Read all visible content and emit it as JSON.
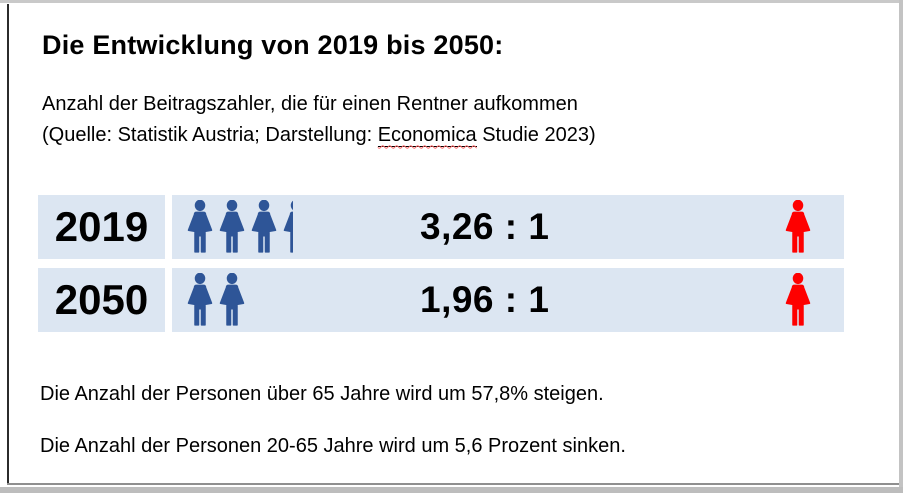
{
  "title": "Die Entwicklung von 2019 bis 2050:",
  "subtitle": {
    "line1": "Anzahl der Beitragszahler, die für einen Rentner aufkommen",
    "line2_prefix": "(Quelle: Statistik Austria; Darstellung: ",
    "line2_word": "Economica",
    "line2_suffix": " Studie 2023)"
  },
  "rows": [
    {
      "year": "2019",
      "ratio": "3,26 : 1",
      "contributors_full_icons": 3,
      "contributors_partial_icon": true,
      "pensioner_icons": 1
    },
    {
      "year": "2050",
      "ratio": "1,96 : 1",
      "contributors_full_icons": 2,
      "contributors_partial_icon": false,
      "pensioner_icons": 1
    }
  ],
  "footnotes": [
    "Die Anzahl der Personen über 65 Jahre wird um 57,8% steigen.",
    "Die Anzahl der Personen 20-65 Jahre wird um 5,6 Prozent sinken."
  ],
  "colors": {
    "contributor_blue": "#2e5597",
    "pensioner_red": "#fe0000",
    "row_background": "#dce6f2",
    "text": "#000000"
  },
  "chart_data": {
    "type": "table",
    "title": "Die Entwicklung von 2019 bis 2050:",
    "subtitle": "Anzahl der Beitragszahler, die für einen Rentner aufkommen",
    "source": "Quelle: Statistik Austria; Darstellung: Economica Studie 2023",
    "categories": [
      "2019",
      "2050"
    ],
    "values": [
      3.26,
      1.96
    ],
    "value_labels": [
      "3,26 : 1",
      "1,96 : 1"
    ],
    "unit": "Beitragszahler pro Rentner",
    "annotations": [
      "Die Anzahl der Personen über 65 Jahre wird um 57,8% steigen.",
      "Die Anzahl der Personen 20-65 Jahre wird um 5,6 Prozent sinken."
    ]
  }
}
